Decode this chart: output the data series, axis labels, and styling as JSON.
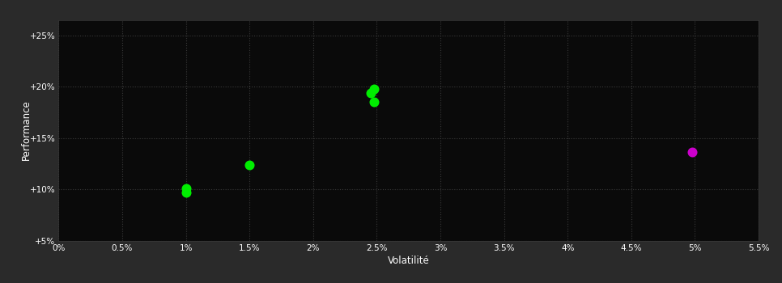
{
  "background_color": "#2a2a2a",
  "plot_bg_color": "#0a0a0a",
  "grid_color": "#3a3a3a",
  "text_color": "#ffffff",
  "xlabel": "Volatilité",
  "ylabel": "Performance",
  "xlim": [
    0.0,
    0.055
  ],
  "ylim": [
    0.05,
    0.265
  ],
  "xtick_values": [
    0.0,
    0.005,
    0.01,
    0.015,
    0.02,
    0.025,
    0.03,
    0.035,
    0.04,
    0.045,
    0.05,
    0.055
  ],
  "xtick_labels": [
    "0%",
    "0.5%",
    "1%",
    "1.5%",
    "2%",
    "2.5%",
    "3%",
    "3.5%",
    "4%",
    "4.5%",
    "5%",
    "5.5%"
  ],
  "ytick_values": [
    0.05,
    0.1,
    0.15,
    0.2,
    0.25
  ],
  "ytick_labels": [
    "+5%",
    "+10%",
    "+15%",
    "+20%",
    "+25%"
  ],
  "green_points": [
    [
      0.01,
      0.101
    ],
    [
      0.01,
      0.097
    ],
    [
      0.015,
      0.124
    ],
    [
      0.0248,
      0.198
    ],
    [
      0.0245,
      0.194
    ],
    [
      0.0248,
      0.185
    ]
  ],
  "magenta_points": [
    [
      0.0498,
      0.136
    ]
  ],
  "green_color": "#00ee00",
  "magenta_color": "#cc00cc",
  "marker_size": 5
}
